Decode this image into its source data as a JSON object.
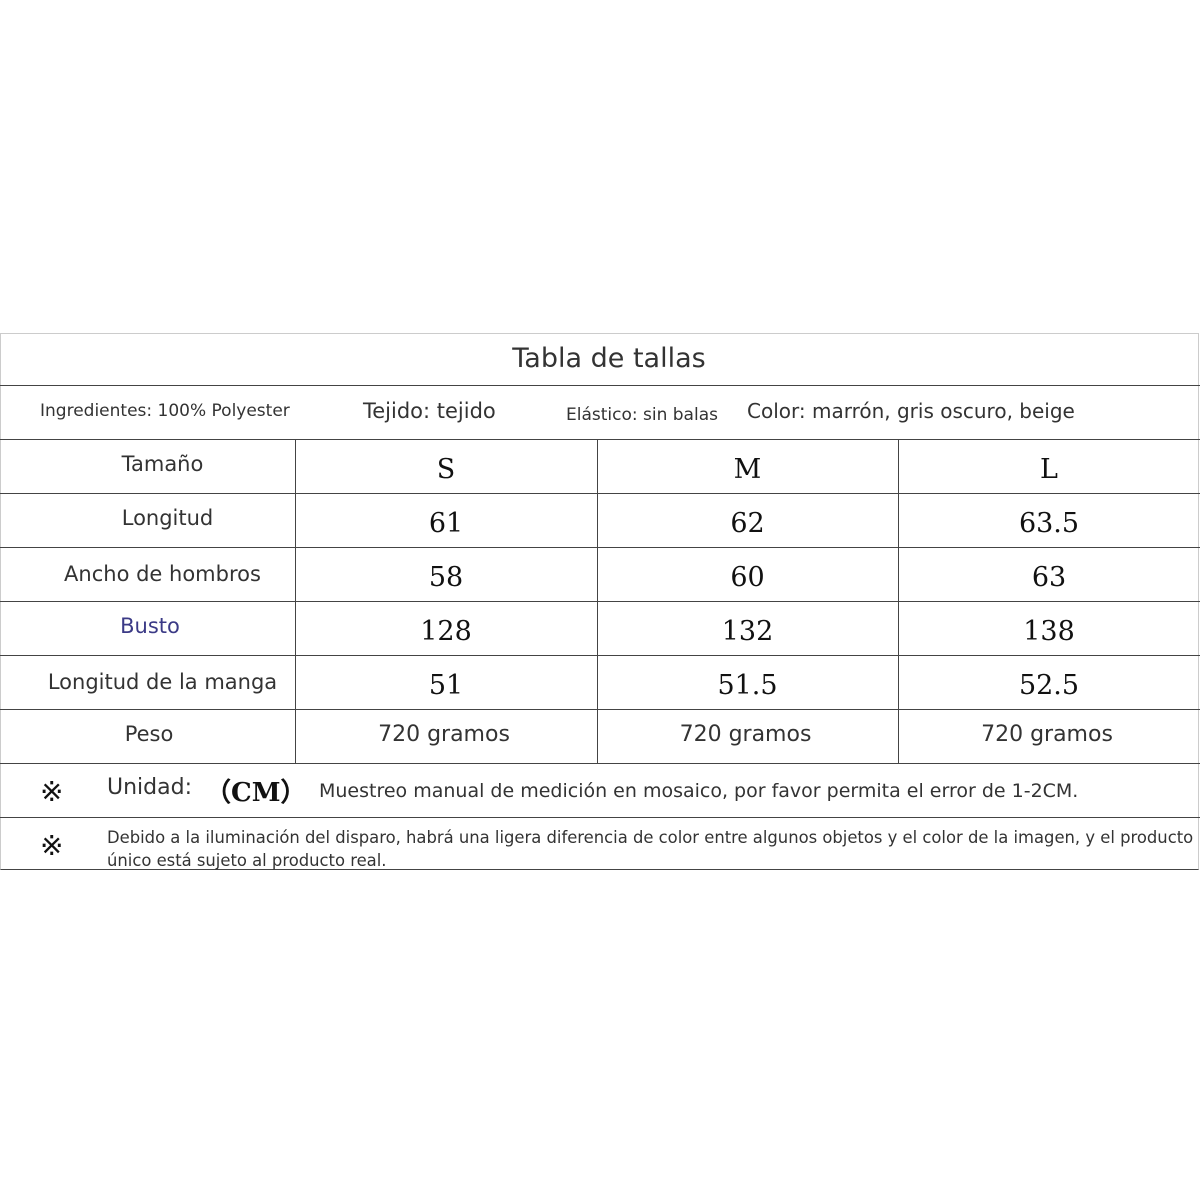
{
  "title": "Tabla de tallas",
  "info": {
    "ingredients": "Ingredientes: 100% Polyester",
    "fabric": "Tejido: tejido",
    "elastic": "Elástico: sin balas",
    "color": "Color: marrón, gris oscuro, beige"
  },
  "table": {
    "header": {
      "label": "Tamaño",
      "sizes": [
        "S",
        "M",
        "L"
      ]
    },
    "rows": [
      {
        "label": "Longitud",
        "values": [
          "61",
          "62",
          "63.5"
        ]
      },
      {
        "label": "Ancho de hombros",
        "values": [
          "58",
          "60",
          "63"
        ]
      },
      {
        "label": "Busto",
        "values": [
          "128",
          "132",
          "138"
        ]
      },
      {
        "label": "Longitud de la manga",
        "values": [
          "51",
          "51.5",
          "52.5"
        ]
      },
      {
        "label": "Peso",
        "values": [
          "720 gramos",
          "720 gramos",
          "720 gramos"
        ]
      }
    ]
  },
  "notes": {
    "mark": "※",
    "unit_label": "Unidad:",
    "unit_value": "（CM）",
    "measurement_note": "Muestreo manual de medición en mosaico, por favor permita el error de 1-2CM.",
    "color_note": "Debido a la iluminación del disparo, habrá una ligera diferencia de color entre algunos objetos y el color de la imagen, y el producto único está sujeto al producto real."
  },
  "colors": {
    "busto_label": "#3b3a86",
    "border": "#444444"
  }
}
